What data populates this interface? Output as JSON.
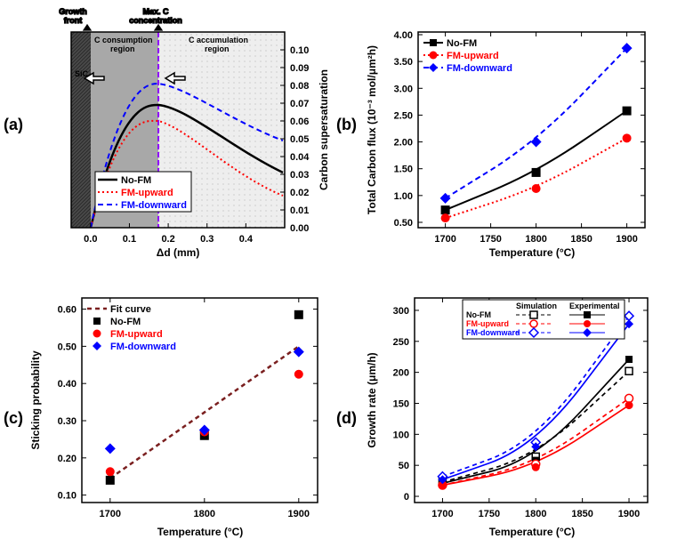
{
  "labels": {
    "a": "(a)",
    "b": "(b)",
    "c": "(c)",
    "d": "(d)"
  },
  "colors": {
    "no_fm": "#000000",
    "fm_up": "#ff0000",
    "fm_down": "#0000ff",
    "fit": "#7a1f1f",
    "grid": "#cccccc",
    "bg": "#ffffff",
    "sic": "#4a4a4a",
    "consumption": "#a8a8a8",
    "accumulation": "#e8e8e8",
    "maxc_line": "#9000ff"
  },
  "panel_a": {
    "title_top1": "Growth",
    "title_top2": "front",
    "title_top3": "Max. C",
    "title_top4": "concentration",
    "sic_label": "SiC",
    "region1_l1": "C consumption",
    "region1_l2": "region",
    "region2_l1": "C accumulation",
    "region2_l2": "region",
    "xlabel": "Δd (mm)",
    "ylabel": "Carbon supersaturation",
    "xlim": [
      -0.05,
      0.5
    ],
    "ylim": [
      0,
      0.11
    ],
    "xticks": [
      0.0,
      0.1,
      0.2,
      0.3,
      0.4
    ],
    "yticks": [
      0.0,
      0.01,
      0.02,
      0.03,
      0.04,
      0.05,
      0.06,
      0.07,
      0.08,
      0.09,
      0.1
    ],
    "legend": {
      "no_fm": "No-FM",
      "fm_up": "FM-upward",
      "fm_down": "FM-downward"
    }
  },
  "panel_b": {
    "xlabel": "Temperature (°C)",
    "ylabel": "Total Carbon flux (10⁻³ mol/μm²h)",
    "xlim": [
      1670,
      1920
    ],
    "ylim": [
      0.4,
      4.05
    ],
    "xticks": [
      1700,
      1750,
      1800,
      1850,
      1900
    ],
    "yticks": [
      0.5,
      1.0,
      1.5,
      2.0,
      2.5,
      3.0,
      3.5,
      4.0
    ],
    "series": {
      "no_fm": {
        "x": [
          1700,
          1800,
          1900
        ],
        "y": [
          0.73,
          1.43,
          2.58
        ]
      },
      "fm_up": {
        "x": [
          1700,
          1800,
          1900
        ],
        "y": [
          0.58,
          1.13,
          2.07
        ]
      },
      "fm_down": {
        "x": [
          1700,
          1800,
          1900
        ],
        "y": [
          0.95,
          2.0,
          3.75
        ]
      }
    },
    "legend": {
      "no_fm": "No-FM",
      "fm_up": "FM-upward",
      "fm_down": "FM-downward"
    }
  },
  "panel_c": {
    "xlabel": "Temperature (°C)",
    "ylabel": "Sticking probability",
    "xlim": [
      1670,
      1920
    ],
    "ylim": [
      0.08,
      0.63
    ],
    "xticks": [
      1700,
      1800,
      1900
    ],
    "yticks": [
      0.1,
      0.2,
      0.3,
      0.4,
      0.5,
      0.6
    ],
    "series": {
      "no_fm": {
        "x": [
          1700,
          1800,
          1900
        ],
        "y": [
          0.14,
          0.26,
          0.585
        ]
      },
      "fm_up": {
        "x": [
          1700,
          1800,
          1900
        ],
        "y": [
          0.163,
          0.27,
          0.425
        ]
      },
      "fm_down": {
        "x": [
          1700,
          1800,
          1900
        ],
        "y": [
          0.225,
          0.275,
          0.485
        ]
      },
      "fit": {
        "x": [
          1700,
          1900
        ],
        "y": [
          0.145,
          0.5
        ]
      }
    },
    "legend": {
      "fit": "Fit curve",
      "no_fm": "No-FM",
      "fm_up": "FM-upward",
      "fm_down": "FM-downward"
    }
  },
  "panel_d": {
    "xlabel": "Temperature (°C)",
    "ylabel": "Growth rate (μm/h)",
    "xlim": [
      1670,
      1920
    ],
    "ylim": [
      -10,
      320
    ],
    "xticks": [
      1700,
      1750,
      1800,
      1850,
      1900
    ],
    "yticks": [
      0,
      50,
      100,
      150,
      200,
      250,
      300
    ],
    "series": {
      "no_fm_sim": {
        "x": [
          1700,
          1800,
          1900
        ],
        "y": [
          23,
          64,
          202
        ]
      },
      "no_fm_exp": {
        "x": [
          1700,
          1800,
          1900
        ],
        "y": [
          21,
          58,
          221
        ]
      },
      "fm_up_sim": {
        "x": [
          1700,
          1800,
          1900
        ],
        "y": [
          18,
          52,
          158
        ]
      },
      "fm_up_exp": {
        "x": [
          1700,
          1800,
          1900
        ],
        "y": [
          18,
          47,
          147
        ]
      },
      "fm_down_sim": {
        "x": [
          1700,
          1800,
          1900
        ],
        "y": [
          32,
          87,
          291
        ]
      },
      "fm_down_exp": {
        "x": [
          1700,
          1800,
          1900
        ],
        "y": [
          27,
          80,
          278
        ]
      }
    },
    "legend": {
      "sim": "Simulation",
      "exp": "Experimental",
      "no_fm": "No-FM",
      "fm_up": "FM-upward",
      "fm_down": "FM-downward"
    }
  }
}
